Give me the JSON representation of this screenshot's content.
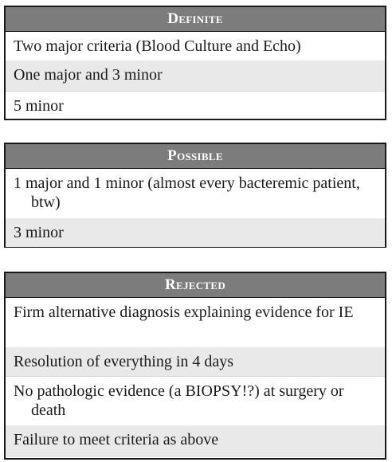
{
  "sections": [
    {
      "header": "Definite",
      "rows": [
        "Two major criteria (Blood Culture and Echo)",
        "One major and 3 minor",
        "5 minor"
      ]
    },
    {
      "header": "Possible",
      "rows": [
        "1 major and 1 minor (almost every bacteremic patient, btw)",
        "3 minor"
      ]
    },
    {
      "header": "Rejected",
      "rows": [
        "Firm alternative diagnosis explaining evidence for IE",
        "Resolution of everything in 4 days",
        "No pathologic evidence (a BIOPSY!?) at surgery or death",
        "Failure to meet criteria as above"
      ]
    }
  ]
}
